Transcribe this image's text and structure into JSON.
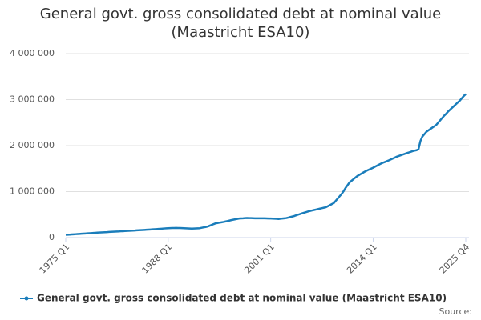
{
  "chart_data": {
    "type": "line",
    "title": "General govt. gross consolidated debt at nominal value (Maastricht ESA10)",
    "source": "Source:",
    "categories": [
      "1975 Q1",
      null,
      null,
      null,
      null,
      null,
      null,
      null,
      null,
      null,
      null,
      null,
      null,
      null,
      null,
      null,
      null,
      null,
      null,
      null,
      null,
      null,
      null,
      null,
      null,
      null,
      null,
      null,
      null,
      null,
      null,
      null,
      null,
      null,
      null,
      null,
      null,
      null,
      null,
      null,
      null,
      null,
      null,
      null,
      null,
      null,
      null,
      null,
      null,
      null,
      null,
      null,
      "1988 Q1",
      null,
      null,
      null,
      null,
      null,
      null,
      null,
      null,
      null,
      null,
      null,
      null,
      null,
      null,
      null,
      null,
      null,
      null,
      null,
      null,
      null,
      null,
      null,
      null,
      null,
      null,
      null,
      null,
      null,
      null,
      null,
      null,
      null,
      null,
      null,
      null,
      null,
      null,
      null,
      null,
      null,
      null,
      null,
      null,
      null,
      null,
      null,
      null,
      null,
      null,
      null,
      "2001 Q1",
      null,
      null,
      null,
      null,
      null,
      null,
      null,
      null,
      null,
      null,
      null,
      null,
      null,
      null,
      null,
      null,
      null,
      null,
      null,
      null,
      null,
      null,
      null,
      null,
      null,
      null,
      null,
      null,
      null,
      null,
      null,
      null,
      null,
      null,
      null,
      null,
      null,
      null,
      null,
      null,
      null,
      null,
      null,
      null,
      null,
      null,
      null,
      null,
      null,
      null,
      null,
      "2014 Q1",
      null,
      null,
      null,
      null,
      null,
      null,
      null,
      null,
      null,
      null,
      null,
      null,
      null,
      null,
      null,
      null,
      null,
      null,
      null,
      null,
      null,
      null,
      null,
      null,
      null,
      null,
      null,
      null,
      null,
      null,
      null,
      null,
      null,
      null,
      null,
      null,
      null,
      null,
      null,
      null,
      null,
      null,
      null,
      null,
      null,
      null,
      "2025 Q4"
    ],
    "series": [
      {
        "name": "General govt. gross consolidated debt at nominal value (Maastricht ESA10)",
        "color": "#1a7dbb",
        "values": [
          60000,
          63000,
          66000,
          69000,
          72000,
          75000,
          78000,
          81000,
          84000,
          87000,
          90000,
          93000,
          96000,
          99000,
          102000,
          105000,
          108000,
          111000,
          113000,
          116000,
          118000,
          120000,
          123000,
          125000,
          128000,
          130000,
          133000,
          135000,
          138000,
          140000,
          143000,
          145000,
          148000,
          150000,
          153000,
          155000,
          158000,
          160000,
          163000,
          165000,
          168000,
          171000,
          174000,
          177000,
          180000,
          183000,
          186000,
          189000,
          192000,
          195000,
          199000,
          202000,
          205000,
          206000,
          208000,
          209000,
          210000,
          209000,
          208000,
          206000,
          205000,
          202000,
          200000,
          197000,
          195000,
          197000,
          200000,
          202000,
          205000,
          214000,
          223000,
          231000,
          240000,
          258000,
          275000,
          293000,
          310000,
          318000,
          325000,
          333000,
          340000,
          350000,
          360000,
          370000,
          380000,
          389000,
          398000,
          406000,
          415000,
          418000,
          420000,
          423000,
          425000,
          424000,
          423000,
          421000,
          420000,
          420000,
          420000,
          420000,
          420000,
          419000,
          418000,
          416000,
          415000,
          413000,
          410000,
          408000,
          405000,
          410000,
          415000,
          420000,
          425000,
          436000,
          448000,
          459000,
          470000,
          485000,
          500000,
          515000,
          530000,
          543000,
          555000,
          568000,
          580000,
          590000,
          600000,
          610000,
          620000,
          630000,
          640000,
          650000,
          660000,
          683000,
          705000,
          728000,
          750000,
          800000,
          850000,
          900000,
          950000,
          1010000,
          1080000,
          1140000,
          1200000,
          1235000,
          1270000,
          1305000,
          1340000,
          1365000,
          1390000,
          1415000,
          1440000,
          1460000,
          1480000,
          1500000,
          1520000,
          1543000,
          1565000,
          1588000,
          1610000,
          1628000,
          1645000,
          1663000,
          1680000,
          1700000,
          1720000,
          1740000,
          1760000,
          1775000,
          1790000,
          1805000,
          1820000,
          1835000,
          1850000,
          1865000,
          1880000,
          1890000,
          1900000,
          1920000,
          2100000,
          2200000,
          2250000,
          2300000,
          2330000,
          2360000,
          2390000,
          2420000,
          2450000,
          2500000,
          2550000,
          2600000,
          2650000,
          2690000,
          2740000,
          2780000,
          2820000,
          2860000,
          2900000,
          2940000,
          2980000,
          3030000,
          3080000,
          3120000
        ]
      }
    ],
    "ylim": [
      0,
      4000000
    ],
    "yticks": [
      0,
      {
        "value": 1000000,
        "label": "1 000 000"
      },
      {
        "value": 2000000,
        "label": "2 000 000"
      },
      {
        "value": 3000000,
        "label": "3 000 000"
      },
      {
        "value": 4000000,
        "label": "4 000 000"
      }
    ],
    "grid": true,
    "legend": "bottom"
  }
}
